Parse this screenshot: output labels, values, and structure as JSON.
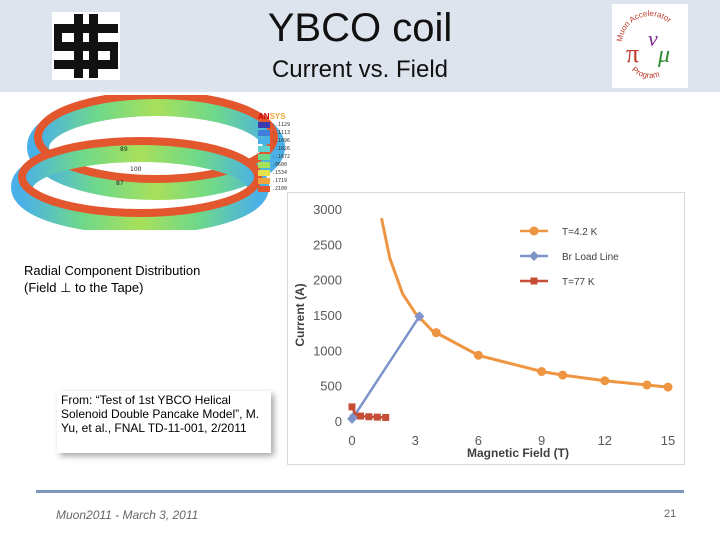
{
  "slide": {
    "title": "YBCO coil",
    "subtitle": "Current vs. Field",
    "caption_line1": "Radial Component Distribution",
    "caption_line2": "(Field ⊥ to the Tape)",
    "reference": "From: “Test of 1st YBCO Helical Solenoid Double Pancake Model”, M. Yu, et al., FNAL TD-11-001, 2/2011",
    "footer_left": "Muon2011  -  March 3, 2011",
    "footer_right": "21"
  },
  "logos": {
    "right_top_text": "Muon Accelerator",
    "right_bottom_text": "Program",
    "pi_symbol": "π",
    "mu_symbol": "μ",
    "nu_symbol": "ν"
  },
  "coil_render": {
    "brand_a": "AN",
    "brand_b": "SYS",
    "legend_values": [
      "-.1129",
      "-.1113",
      "-.1096",
      "-.1826",
      "-.1672",
      ".0600",
      ".1534",
      ".1719",
      ".2100"
    ],
    "legend_colors": [
      "#3b3bb0",
      "#3f7fd8",
      "#4ab0e8",
      "#5fd2d0",
      "#6ed88a",
      "#a8e05a",
      "#e6e04a",
      "#f0a53a",
      "#e3572e"
    ],
    "probe_labels": [
      "89",
      "100",
      "87"
    ]
  },
  "chart_data": {
    "type": "line",
    "title": "",
    "xlabel": "Magnetic Field (T)",
    "ylabel": "Current (A)",
    "xlim": [
      0,
      15
    ],
    "ylim": [
      0,
      3000
    ],
    "xticks": [
      "0",
      "3",
      "6",
      "9",
      "12",
      "15"
    ],
    "yticks": [
      "0",
      "500",
      "1000",
      "1500",
      "2000",
      "2500",
      "3000"
    ],
    "legend_position": "top-right",
    "series": [
      {
        "name": "T=4.2 K",
        "color": "#ee9542",
        "marker": "circle",
        "points": [
          [
            1.4,
            2870
          ],
          [
            1.8,
            2300
          ],
          [
            2.4,
            1800
          ],
          [
            3.0,
            1530
          ],
          [
            3.8,
            1280
          ],
          [
            6.0,
            930
          ],
          [
            9.0,
            700
          ],
          [
            10.0,
            650
          ],
          [
            12.0,
            570
          ],
          [
            14.0,
            510
          ],
          [
            15.0,
            480
          ]
        ],
        "marker_points": [
          [
            4.0,
            1250
          ],
          [
            6.0,
            930
          ],
          [
            9.0,
            700
          ],
          [
            10.0,
            650
          ],
          [
            12.0,
            570
          ],
          [
            14.0,
            510
          ],
          [
            15.0,
            480
          ]
        ]
      },
      {
        "name": "Br Load Line",
        "color": "#7d93c9",
        "marker": "diamond",
        "points": [
          [
            0.0,
            30
          ],
          [
            0.1,
            70
          ],
          [
            3.2,
            1480
          ]
        ],
        "marker_points": [
          [
            0.0,
            30
          ],
          [
            0.1,
            70
          ],
          [
            3.2,
            1480
          ]
        ]
      },
      {
        "name": "T=77 K",
        "color": "#c64d36",
        "marker": "square",
        "points": [
          [
            0.0,
            200
          ],
          [
            0.15,
            100
          ],
          [
            0.4,
            70
          ],
          [
            0.8,
            60
          ],
          [
            1.2,
            55
          ],
          [
            1.6,
            50
          ]
        ],
        "marker_points": [
          [
            0.0,
            200
          ],
          [
            0.4,
            70
          ],
          [
            0.8,
            60
          ],
          [
            1.2,
            55
          ],
          [
            1.6,
            50
          ]
        ]
      }
    ]
  }
}
